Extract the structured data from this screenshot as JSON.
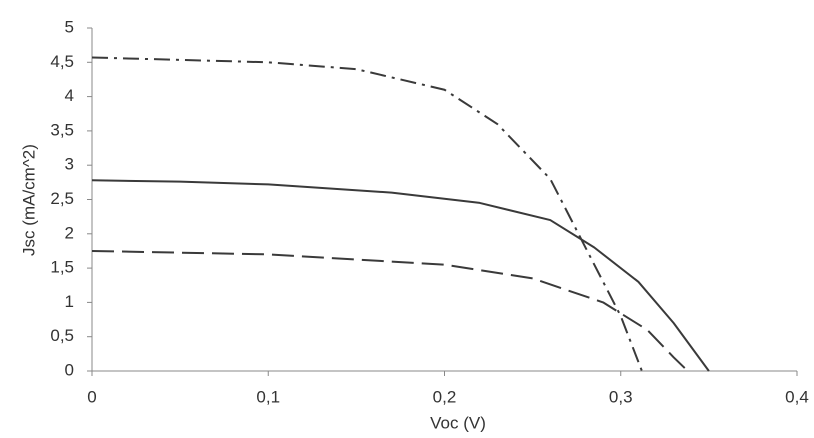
{
  "chart_data": {
    "type": "line",
    "xlabel": "Voc (V)",
    "ylabel": "Jsc (mA/cm^2)",
    "xlim": [
      0,
      0.4
    ],
    "ylim": [
      0,
      5
    ],
    "xticks": [
      0,
      {
        "value": 0.1,
        "label": "0,1"
      },
      {
        "value": 0.2,
        "label": "0,2"
      },
      {
        "value": 0.3,
        "label": "0,3"
      },
      {
        "value": 0.4,
        "label": "0,4"
      }
    ],
    "yticks": [
      0,
      {
        "value": 0.5,
        "label": "0,5"
      },
      1,
      {
        "value": 1.5,
        "label": "1,5"
      },
      2,
      {
        "value": 2.5,
        "label": "2,5"
      },
      3,
      {
        "value": 3.5,
        "label": "3,5"
      },
      4,
      {
        "value": 4.5,
        "label": "4,5"
      },
      5
    ],
    "grid": false,
    "series": [
      {
        "color": "#3a3a3a",
        "dash": "solid",
        "x": [
          0,
          0.05,
          0.1,
          0.17,
          0.22,
          0.26,
          0.285,
          0.31,
          0.33,
          0.35
        ],
        "values": [
          2.78,
          2.76,
          2.72,
          2.6,
          2.45,
          2.2,
          1.8,
          1.3,
          0.7,
          0
        ]
      },
      {
        "color": "#3a3a3a",
        "dash": "dashed",
        "x": [
          0,
          0.1,
          0.2,
          0.25,
          0.29,
          0.315,
          0.33,
          0.338
        ],
        "values": [
          1.75,
          1.7,
          1.55,
          1.35,
          1.0,
          0.6,
          0.2,
          0
        ]
      },
      {
        "color": "#3a3a3a",
        "dash": "dashdot",
        "x": [
          0,
          0.1,
          0.15,
          0.2,
          0.23,
          0.26,
          0.28,
          0.3,
          0.312
        ],
        "values": [
          4.57,
          4.5,
          4.4,
          4.1,
          3.6,
          2.8,
          1.8,
          0.8,
          0
        ]
      }
    ]
  }
}
